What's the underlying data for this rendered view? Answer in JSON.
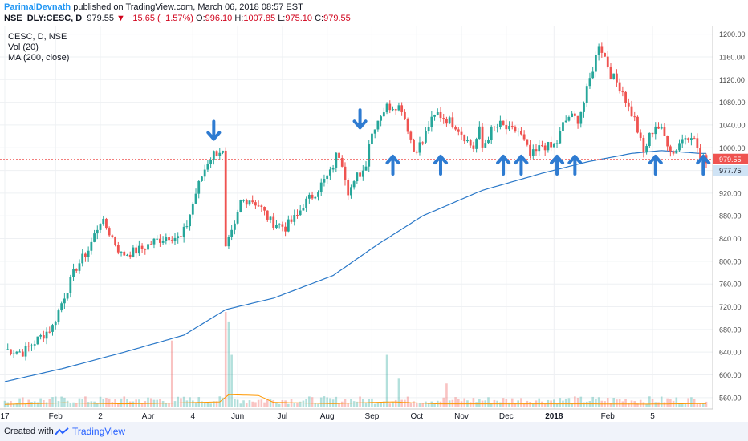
{
  "header": {
    "author": "ParimalDevnath",
    "published": "published on TradingView.com, March 06, 2018 08:57 EST",
    "symbol": "NSE_DLY:CESC, D",
    "last": "979.55",
    "change_arrow": "▼",
    "change": "−15.65 (−1.57%)",
    "o_label": "O:",
    "o": "996.10",
    "h_label": "H:",
    "h": "1007.85",
    "l_label": "L:",
    "l": "975.10",
    "c_label": "C:",
    "c": "979.55"
  },
  "legend": {
    "line1": "CESC, D, NSE",
    "line2": "Vol (20)",
    "line3": "MA (200, close)"
  },
  "footer": {
    "created_with": "Created with",
    "brand": "TradingView"
  },
  "colors": {
    "up": "#26a69a",
    "down": "#ef5350",
    "ma": "#2a78c8",
    "vol_ma": "#ff9800",
    "arrow": "#2e7bd1",
    "price_tag": "#ef5350",
    "ma_tag": "#2a78c8"
  },
  "chart_data": [
    {
      "type": "candlestick",
      "series_name": "CESC",
      "y_range": [
        540,
        1215
      ],
      "y_ticks": [
        "560.00",
        "600.00",
        "640.00",
        "680.00",
        "720.00",
        "760.00",
        "800.00",
        "840.00",
        "880.00",
        "920.00",
        "960.00",
        "1000.00",
        "1040.00",
        "1080.00",
        "1120.00",
        "1160.00",
        "1200.00"
      ],
      "x_labels": [
        "17",
        "Feb",
        "2",
        "Apr",
        "4",
        "Jun",
        "Jul",
        "Aug",
        "Sep",
        "Oct",
        "Nov",
        "Dec",
        "2018",
        "Feb",
        "5"
      ],
      "price_path": [
        [
          0,
          645
        ],
        [
          6,
          640
        ],
        [
          10,
          658
        ],
        [
          16,
          685
        ],
        [
          20,
          740
        ],
        [
          24,
          790
        ],
        [
          28,
          820
        ],
        [
          32,
          872
        ],
        [
          34,
          860
        ],
        [
          37,
          832
        ],
        [
          39,
          812
        ],
        [
          42,
          815
        ],
        [
          46,
          822
        ],
        [
          50,
          835
        ],
        [
          55,
          845
        ],
        [
          59,
          840
        ],
        [
          61,
          865
        ],
        [
          64,
          920
        ],
        [
          66,
          950
        ],
        [
          68,
          975
        ],
        [
          70,
          990
        ],
        [
          72,
          995
        ],
        [
          73,
          990
        ],
        [
          74,
          820
        ],
        [
          75,
          835
        ],
        [
          77,
          860
        ],
        [
          79,
          905
        ],
        [
          82,
          910
        ],
        [
          85,
          900
        ],
        [
          89,
          870
        ],
        [
          94,
          860
        ],
        [
          98,
          880
        ],
        [
          100,
          900
        ],
        [
          103,
          915
        ],
        [
          106,
          935
        ],
        [
          109,
          955
        ],
        [
          111,
          985
        ],
        [
          112,
          988
        ],
        [
          113,
          975
        ],
        [
          115,
          925
        ],
        [
          117,
          935
        ],
        [
          118,
          950
        ],
        [
          120,
          960
        ],
        [
          121,
          975
        ],
        [
          122,
          1010
        ],
        [
          124,
          1040
        ],
        [
          126,
          1060
        ],
        [
          128,
          1072
        ],
        [
          131,
          1075
        ],
        [
          133,
          1070
        ],
        [
          135,
          1035
        ],
        [
          137,
          995
        ],
        [
          140,
          1010
        ],
        [
          142,
          1040
        ],
        [
          145,
          1060
        ],
        [
          148,
          1050
        ],
        [
          151,
          1040
        ],
        [
          154,
          1020
        ],
        [
          156,
          1005
        ],
        [
          157,
          1000
        ],
        [
          159,
          1030
        ],
        [
          160,
          1000
        ],
        [
          163,
          1030
        ],
        [
          166,
          1040
        ],
        [
          169,
          1030
        ],
        [
          172,
          1030
        ],
        [
          174,
          1010
        ],
        [
          176,
          985
        ],
        [
          178,
          992
        ],
        [
          180,
          1005
        ],
        [
          183,
          1000
        ],
        [
          185,
          1010
        ],
        [
          187,
          1040
        ],
        [
          189,
          1055
        ],
        [
          192,
          1050
        ],
        [
          194,
          1080
        ],
        [
          196,
          1120
        ],
        [
          198,
          1160
        ],
        [
          199,
          1185
        ],
        [
          201,
          1160
        ],
        [
          203,
          1130
        ],
        [
          205,
          1115
        ],
        [
          207,
          1100
        ],
        [
          209,
          1070
        ],
        [
          211,
          1050
        ],
        [
          213,
          1010
        ],
        [
          214,
          990
        ],
        [
          216,
          1020
        ],
        [
          218,
          1040
        ],
        [
          220,
          1030
        ],
        [
          222,
          1010
        ],
        [
          224,
          990
        ],
        [
          226,
          1010
        ],
        [
          228,
          1020
        ],
        [
          230,
          1025
        ],
        [
          232,
          1000
        ],
        [
          233,
          980
        ]
      ],
      "ma200_path": [
        [
          0,
          588
        ],
        [
          20,
          612
        ],
        [
          40,
          640
        ],
        [
          60,
          670
        ],
        [
          74,
          715
        ],
        [
          90,
          735
        ],
        [
          110,
          775
        ],
        [
          125,
          830
        ],
        [
          140,
          880
        ],
        [
          160,
          925
        ],
        [
          180,
          955
        ],
        [
          195,
          975
        ],
        [
          210,
          990
        ],
        [
          220,
          995
        ],
        [
          233,
          990
        ]
      ],
      "vol_ma_path": [
        [
          0,
          0.12
        ],
        [
          20,
          0.18
        ],
        [
          40,
          0.14
        ],
        [
          60,
          0.18
        ],
        [
          72,
          0.22
        ],
        [
          75,
          0.5
        ],
        [
          85,
          0.47
        ],
        [
          90,
          0.2
        ],
        [
          110,
          0.15
        ],
        [
          130,
          0.22
        ],
        [
          145,
          0.14
        ],
        [
          165,
          0.14
        ],
        [
          195,
          0.14
        ],
        [
          215,
          0.13
        ],
        [
          233,
          0.15
        ]
      ],
      "vol_spikes": [
        [
          56,
          0.7
        ],
        [
          74,
          1.0
        ],
        [
          75,
          0.9
        ],
        [
          76,
          0.55
        ],
        [
          128,
          0.55
        ],
        [
          132,
          0.3
        ],
        [
          148,
          0.25
        ]
      ],
      "last_price": "979.55",
      "ma_last": "977.75",
      "arrows_down": [
        [
          70,
          1035
        ],
        [
          119,
          1055
        ]
      ],
      "arrows_up": [
        [
          130,
          965
        ],
        [
          146,
          965
        ],
        [
          167,
          965
        ],
        [
          173,
          965
        ],
        [
          185,
          965
        ],
        [
          191,
          965
        ],
        [
          218,
          965
        ],
        [
          234,
          965
        ]
      ]
    }
  ]
}
